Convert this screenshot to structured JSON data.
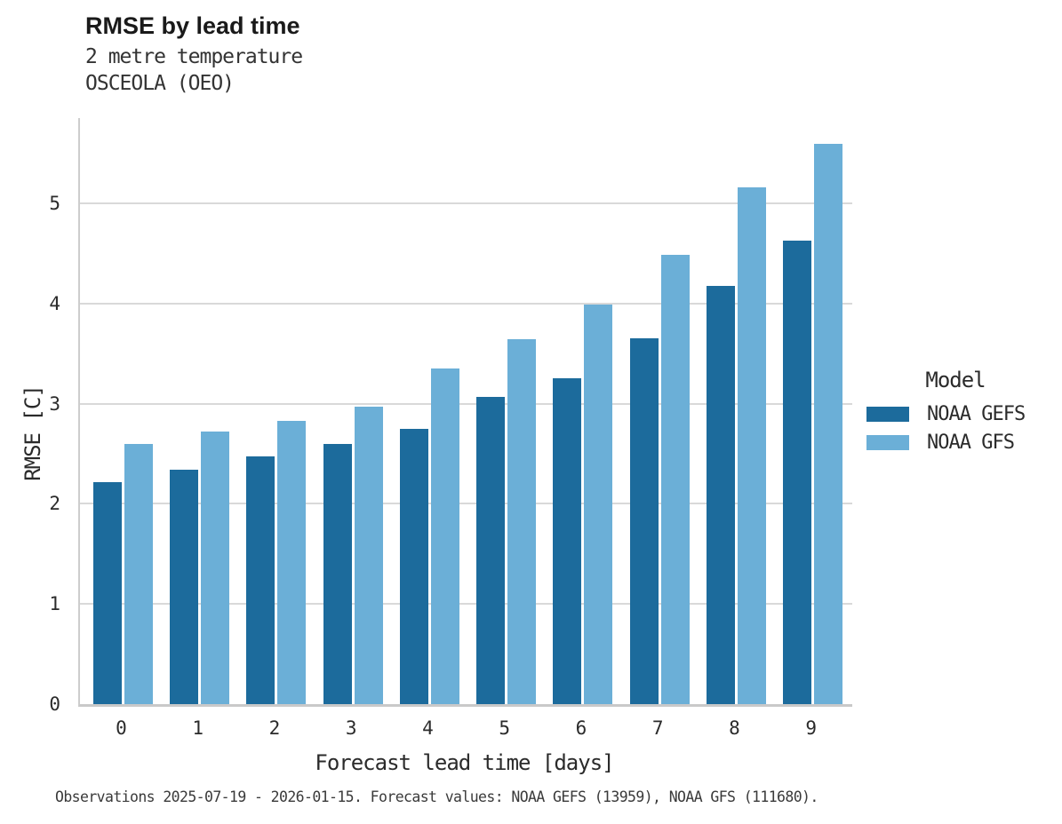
{
  "header": {
    "title": "RMSE by lead time",
    "subtitle1": "2 metre temperature",
    "subtitle2": "OSCEOLA (OEO)"
  },
  "legend": {
    "title": "Model",
    "items": [
      {
        "label": "NOAA GEFS",
        "color": "#1c6b9c"
      },
      {
        "label": "NOAA GFS",
        "color": "#6bafd7"
      }
    ]
  },
  "footer": {
    "note": "Observations 2025-07-19 - 2026-01-15. Forecast values: NOAA GEFS (13959), NOAA GFS (111680)."
  },
  "colors": {
    "gefs_bar": "#1c6b9c",
    "gfs_bar": "#6bafd7",
    "axis_spine": "#cdcdcd",
    "gridline": "#d9d9d9",
    "text": "#262626"
  },
  "chart_data": {
    "type": "bar",
    "title": "RMSE by lead time",
    "subtitle": [
      "2 metre temperature",
      "OSCEOLA (OEO)"
    ],
    "xlabel": "Forecast lead time [days]",
    "ylabel": "RMSE [C]",
    "categories": [
      "0",
      "1",
      "2",
      "3",
      "4",
      "5",
      "6",
      "7",
      "8",
      "9"
    ],
    "series": [
      {
        "name": "NOAA GEFS",
        "color": "#1c6b9c",
        "values": [
          2.22,
          2.34,
          2.47,
          2.6,
          2.75,
          3.07,
          3.25,
          3.65,
          4.18,
          4.63
        ]
      },
      {
        "name": "NOAA GFS",
        "color": "#6bafd7",
        "values": [
          2.6,
          2.72,
          2.83,
          2.97,
          3.35,
          3.64,
          3.99,
          4.49,
          5.16,
          5.59
        ]
      }
    ],
    "ylim": [
      0,
      5.85
    ],
    "yticks": [
      0,
      1,
      2,
      3,
      4,
      5
    ],
    "grid": true,
    "legend_position": "right",
    "legend_title": "Model"
  }
}
